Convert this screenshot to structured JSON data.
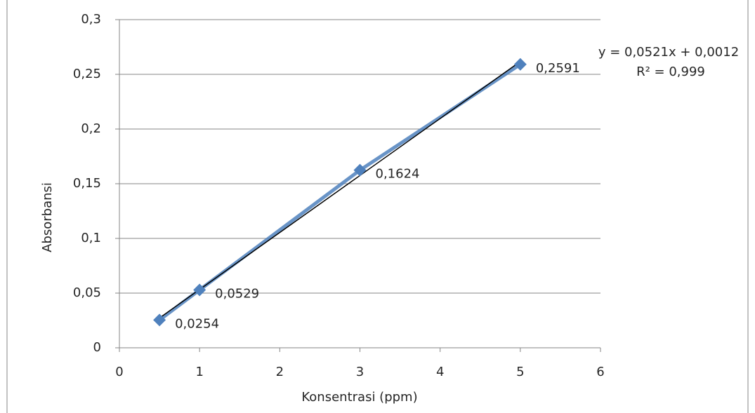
{
  "chart_data": {
    "type": "scatter",
    "x_label": "Konsentrasi (ppm)",
    "y_label": "Absorbansi",
    "x": [
      0.5,
      1,
      3,
      5
    ],
    "series": [
      {
        "color": "#4f81bd",
        "values": [
          0.0254,
          0.0529,
          0.1624,
          0.2591
        ],
        "value_labels": [
          "0,0254",
          "0,0529",
          "0,1624",
          "0,2591"
        ]
      }
    ],
    "trendline": {
      "color": "#000000",
      "slope": 0.0521,
      "intercept": 0.0012,
      "equation": "y = 0,0521x + 0,0012",
      "r_squared_label": "R² = 0,999"
    },
    "xlim": [
      0,
      6
    ],
    "xticks": [
      0,
      1,
      2,
      3,
      4,
      5,
      6
    ],
    "ylim": [
      0,
      0.3
    ],
    "yticks": [
      0,
      {
        "value": 0.05,
        "label": "0,05"
      },
      {
        "value": 0.1,
        "label": "0,1"
      },
      {
        "value": 0.15,
        "label": "0,15"
      },
      {
        "value": 0.2,
        "label": "0,2"
      },
      {
        "value": 0.25,
        "label": "0,25"
      },
      {
        "value": 0.3,
        "label": "0,3"
      }
    ],
    "grid": true
  }
}
